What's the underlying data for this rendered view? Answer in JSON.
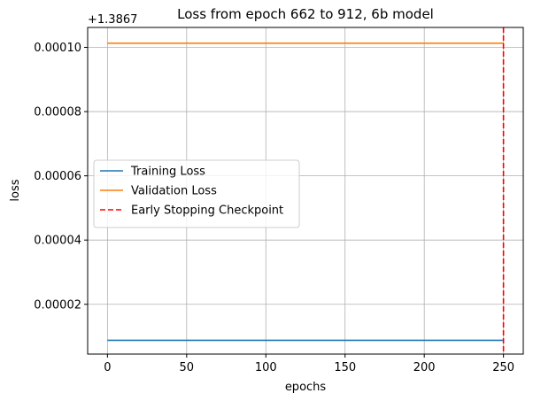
{
  "chart_data": {
    "type": "line",
    "title": "Loss from epoch 662 to 912, 6b model",
    "xlabel": "epochs",
    "ylabel": "loss",
    "offset_text": "+1.3867",
    "xlim": [
      -12.5,
      262.5
    ],
    "ylim": [
      4.5e-06,
      0.0001062
    ],
    "xticks": [
      0,
      50,
      100,
      150,
      200,
      250
    ],
    "xtick_labels": [
      "0",
      "50",
      "100",
      "150",
      "200",
      "250"
    ],
    "yticks": [
      2e-05,
      4e-05,
      6e-05,
      8e-05,
      0.0001
    ],
    "ytick_labels": [
      "0.00002",
      "0.00004",
      "0.00006",
      "0.00008",
      "0.00010"
    ],
    "grid": true,
    "legend_position": "center-left",
    "series": [
      {
        "name": "Training Loss",
        "color": "#1f77b4",
        "style": "solid",
        "x": [
          0,
          250
        ],
        "y": [
          8.8e-06,
          8.8e-06
        ]
      },
      {
        "name": "Validation Loss",
        "color": "#ff7f0e",
        "style": "solid",
        "x": [
          0,
          250
        ],
        "y": [
          0.0001013,
          0.0001013
        ]
      }
    ],
    "vlines": [
      {
        "name": "Early Stopping Checkpoint",
        "color": "#ff0000",
        "style": "dashed",
        "x": 250
      }
    ]
  }
}
